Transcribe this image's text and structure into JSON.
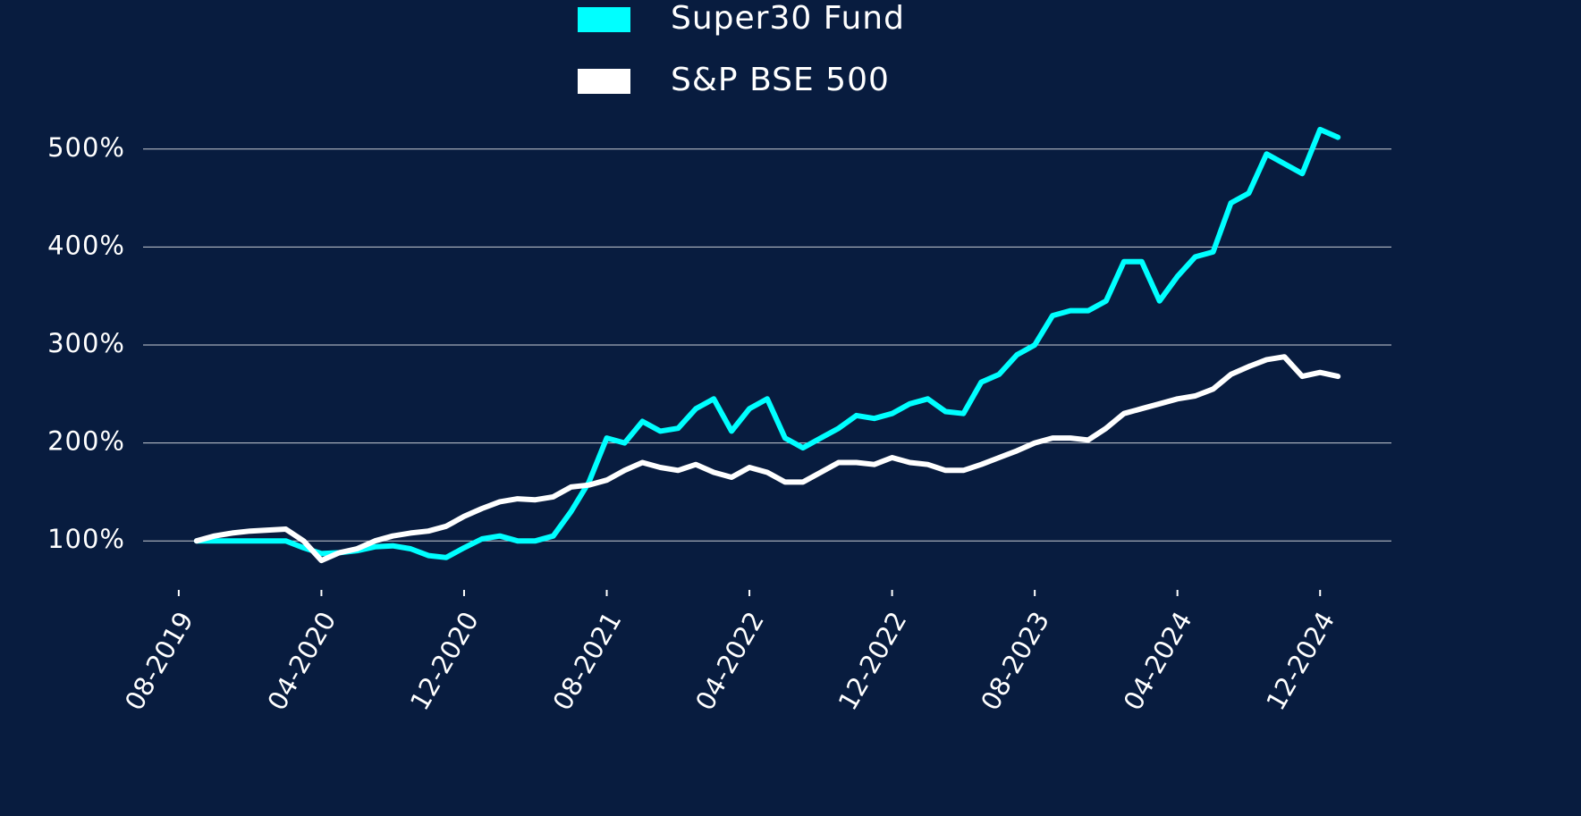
{
  "chart_data": {
    "type": "line",
    "x": [
      "2019-09",
      "2019-10",
      "2019-11",
      "2019-12",
      "2020-01",
      "2020-02",
      "2020-03",
      "2020-04",
      "2020-05",
      "2020-06",
      "2020-07",
      "2020-08",
      "2020-09",
      "2020-10",
      "2020-11",
      "2020-12",
      "2021-01",
      "2021-02",
      "2021-03",
      "2021-04",
      "2021-05",
      "2021-06",
      "2021-07",
      "2021-08",
      "2021-09",
      "2021-10",
      "2021-11",
      "2021-12",
      "2022-01",
      "2022-02",
      "2022-03",
      "2022-04",
      "2022-05",
      "2022-06",
      "2022-07",
      "2022-08",
      "2022-09",
      "2022-10",
      "2022-11",
      "2022-12",
      "2023-01",
      "2023-02",
      "2023-03",
      "2023-04",
      "2023-05",
      "2023-06",
      "2023-07",
      "2023-08",
      "2023-09",
      "2023-10",
      "2023-11",
      "2023-12",
      "2024-01",
      "2024-02",
      "2024-03",
      "2024-04",
      "2024-05",
      "2024-06",
      "2024-07",
      "2024-08",
      "2024-09",
      "2024-10",
      "2024-11",
      "2024-12",
      "2025-01"
    ],
    "series": [
      {
        "name": "Super30 Fund",
        "color": "#00ffff",
        "values": [
          100,
          100,
          100,
          100,
          100,
          100,
          93,
          87,
          88,
          90,
          94,
          95,
          92,
          85,
          83,
          93,
          102,
          105,
          100,
          100,
          105,
          130,
          160,
          205,
          200,
          222,
          212,
          215,
          235,
          245,
          212,
          235,
          245,
          205,
          195,
          205,
          215,
          228,
          225,
          230,
          240,
          245,
          232,
          230,
          262,
          270,
          290,
          300,
          330,
          335,
          335,
          345,
          385,
          385,
          345,
          370,
          390,
          395,
          445,
          455,
          495,
          485,
          475,
          520,
          512
        ]
      },
      {
        "name": "S&P BSE 500",
        "color": "#ffffff",
        "values": [
          100,
          105,
          108,
          110,
          111,
          112,
          100,
          80,
          88,
          92,
          100,
          105,
          108,
          110,
          115,
          125,
          133,
          140,
          143,
          142,
          145,
          155,
          157,
          162,
          172,
          180,
          175,
          172,
          178,
          170,
          165,
          175,
          170,
          160,
          160,
          170,
          180,
          180,
          178,
          185,
          180,
          178,
          172,
          172,
          178,
          185,
          192,
          200,
          205,
          205,
          203,
          215,
          230,
          235,
          240,
          245,
          248,
          255,
          270,
          278,
          285,
          288,
          268,
          272,
          268
        ]
      }
    ],
    "xlim": [
      "2019-06",
      "2025-04"
    ],
    "xticks": [
      {
        "value": "2019-08",
        "label": "08-2019"
      },
      {
        "value": "2020-04",
        "label": "04-2020"
      },
      {
        "value": "2020-12",
        "label": "12-2020"
      },
      {
        "value": "2021-08",
        "label": "08-2021"
      },
      {
        "value": "2022-04",
        "label": "04-2022"
      },
      {
        "value": "2022-12",
        "label": "12-2022"
      },
      {
        "value": "2023-08",
        "label": "08-2023"
      },
      {
        "value": "2024-04",
        "label": "04-2024"
      },
      {
        "value": "2024-12",
        "label": "12-2024"
      }
    ],
    "ylim": [
      50,
      550
    ],
    "yticks": [
      {
        "value": 100,
        "label": "100%"
      },
      {
        "value": 200,
        "label": "200%"
      },
      {
        "value": 300,
        "label": "300%"
      },
      {
        "value": 400,
        "label": "400%"
      },
      {
        "value": 500,
        "label": "500%"
      }
    ],
    "grid": true,
    "legend": "upper center",
    "background": "#081c3f"
  }
}
